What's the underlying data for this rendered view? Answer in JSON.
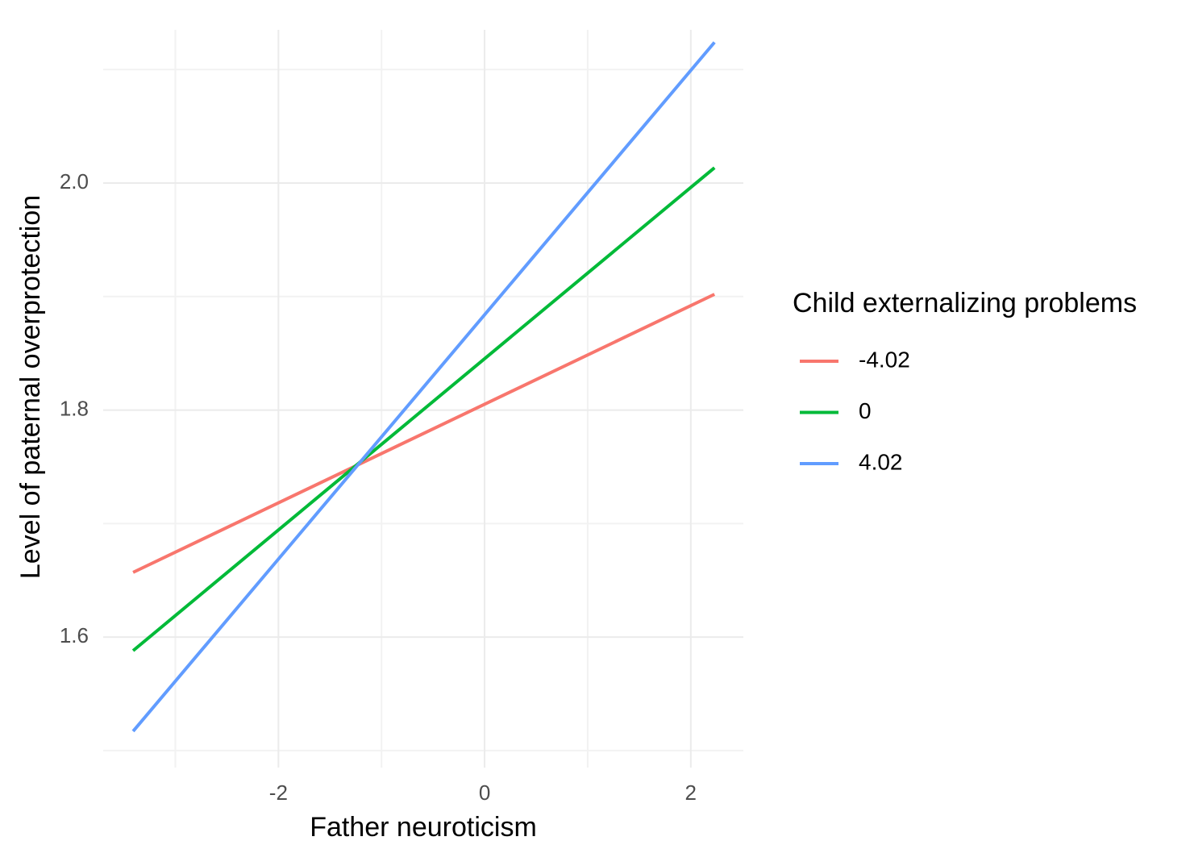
{
  "chart_data": {
    "type": "line",
    "x_label": "Father neuroticism",
    "y_label": "Level of paternal overprotection",
    "legend_title": "Child externalizing problems",
    "legend": "right",
    "grid": true,
    "x": [
      -3.41,
      2.23
    ],
    "series": [
      {
        "name": "-4.02",
        "color": "#f8766d",
        "values": [
          1.657,
          1.902
        ]
      },
      {
        "name": "0",
        "color": "#00ba38",
        "values": [
          1.588,
          2.0135
        ]
      },
      {
        "name": "4.02",
        "color": "#619cff",
        "values": [
          1.517,
          2.124
        ]
      }
    ],
    "xlim": [
      -3.7,
      2.51
    ],
    "ylim": [
      1.485,
      2.135
    ],
    "xticks": [
      -2,
      0,
      2
    ],
    "yticks": [
      1.6,
      1.8,
      {
        "value": 2,
        "label": "2.0"
      }
    ],
    "minor_xticks": [
      -3,
      -1,
      1
    ],
    "minor_yticks": [
      1.5,
      1.7,
      1.9,
      2.1
    ]
  }
}
